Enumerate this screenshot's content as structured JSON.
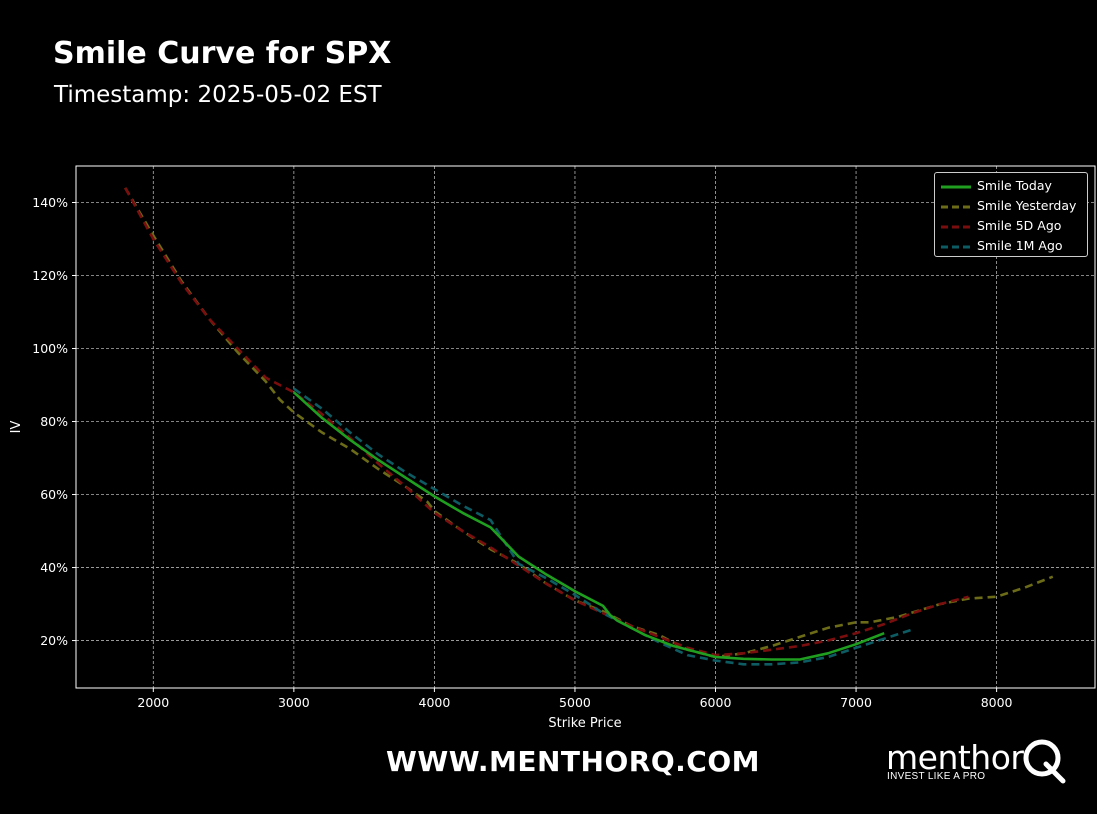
{
  "header": {
    "title": "Smile Curve for SPX",
    "subtitle": "Timestamp: 2025-05-02 EST"
  },
  "footer": {
    "url": "WWW.MENTHORQ.COM",
    "brand_name": "menthor",
    "brand_tagline": "INVEST LIKE A PRO",
    "brand_icon": "q-magnifier-logo"
  },
  "colors": {
    "background": "#000000",
    "grid": "#b0b0b0",
    "axis": "#ffffff"
  },
  "chart_data": {
    "type": "line",
    "title": "",
    "xlabel": "Strike Price",
    "ylabel": "IV",
    "xlim": [
      1450,
      8700
    ],
    "ylim": [
      7,
      150
    ],
    "xticks": [
      2000,
      3000,
      4000,
      5000,
      6000,
      7000,
      8000
    ],
    "yticks": [
      20,
      40,
      60,
      80,
      100,
      120,
      140
    ],
    "ytick_labels": [
      "20%",
      "40%",
      "60%",
      "80%",
      "100%",
      "120%",
      "140%"
    ],
    "grid": true,
    "legend_position": "top-right",
    "series": [
      {
        "name": "Smile Today",
        "color": "#1f9e1f",
        "dash": "solid",
        "x": [
          3000,
          3200,
          3400,
          3600,
          3800,
          4000,
          4200,
          4400,
          4450,
          4600,
          4800,
          5000,
          5200,
          5250,
          5300,
          5500,
          5700,
          5900,
          6000,
          6200,
          6400,
          6600,
          6800,
          7000,
          7200
        ],
        "y": [
          88,
          81,
          75,
          69.5,
          64.5,
          59.5,
          55,
          51,
          49,
          43,
          38,
          33.5,
          29.5,
          27,
          25.5,
          21.5,
          18.5,
          16.5,
          15.5,
          15,
          14.8,
          14.8,
          16.5,
          19,
          22
        ]
      },
      {
        "name": "Smile Yesterday",
        "color": "#6b6b18",
        "dash": "dashed",
        "x": [
          1800,
          2000,
          2200,
          2400,
          2600,
          2800,
          2900,
          3000,
          3200,
          3400,
          3600,
          3800,
          3950,
          4000,
          4200,
          4400,
          4600,
          4800,
          5000,
          5200,
          5400,
          5600,
          5800,
          6000,
          6200,
          6400,
          6600,
          6800,
          7000,
          7100,
          7300,
          7600,
          7800,
          8000,
          8200,
          8400
        ],
        "y": [
          144,
          131,
          118.5,
          108,
          99,
          91,
          86,
          82.5,
          77,
          72.5,
          67,
          62,
          58,
          55.5,
          50,
          45,
          41,
          35.5,
          31,
          28,
          24,
          21.5,
          17.5,
          15.5,
          16.5,
          18.5,
          21,
          23.5,
          25,
          25,
          26.5,
          30,
          31.5,
          32,
          34.5,
          37.5
        ]
      },
      {
        "name": "Smile 5D Ago",
        "color": "#7a0e0e",
        "dash": "dashed",
        "x": [
          1800,
          2000,
          2200,
          2400,
          2600,
          2800,
          3000,
          3200,
          3400,
          3600,
          3800,
          4000,
          4200,
          4400,
          4600,
          4800,
          5000,
          5200,
          5400,
          5600,
          5800,
          6000,
          6200,
          6400,
          6600,
          6800,
          7000,
          7200,
          7400,
          7600,
          7800
        ],
        "y": [
          144,
          130,
          118,
          108,
          100,
          92,
          88,
          82,
          75.5,
          68.5,
          62,
          55,
          50,
          45.5,
          40.5,
          35.5,
          31,
          27.5,
          24,
          21,
          18,
          16,
          16.5,
          17.5,
          18.5,
          20,
          22,
          24.5,
          27.5,
          30,
          32
        ]
      },
      {
        "name": "Smile 1M Ago",
        "color": "#0d5c63",
        "dash": "dashed",
        "x": [
          3000,
          3200,
          3400,
          3600,
          3800,
          4000,
          4200,
          4400,
          4600,
          4800,
          5000,
          5200,
          5400,
          5600,
          5800,
          6000,
          6200,
          6400,
          6600,
          6800,
          7000,
          7200,
          7400
        ],
        "y": [
          89,
          83.5,
          77,
          71,
          66,
          61.5,
          57,
          53,
          41,
          37,
          32.5,
          27.5,
          23.5,
          19.5,
          16,
          14.5,
          13.5,
          13.5,
          14,
          15.5,
          18,
          20.5,
          23
        ]
      }
    ]
  }
}
